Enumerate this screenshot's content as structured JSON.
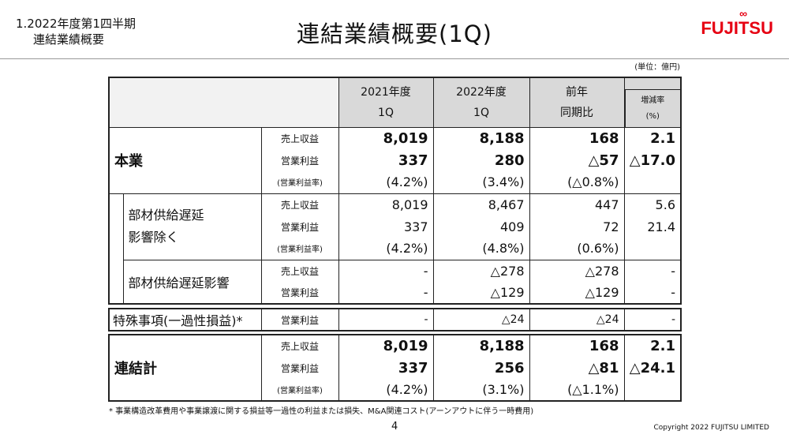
{
  "section": {
    "line1": "1.2022年度第1四半期",
    "line2": "連結業績概要"
  },
  "title": "連結業績概要(1Q)",
  "logo": "FUJITSU",
  "unit": "(単位：億円)",
  "headers": {
    "y2021": [
      "2021年度",
      "1Q"
    ],
    "y2022": [
      "2022年度",
      "1Q"
    ],
    "diff": [
      "前年",
      "同期比"
    ],
    "rate": [
      "増減率",
      "(%)"
    ]
  },
  "items": {
    "rev": "売上収益",
    "op": "営業利益",
    "margin": "(営業利益率)"
  },
  "core": {
    "label": "本業",
    "rev": [
      "8,019",
      "8,188",
      "168",
      "2.1"
    ],
    "op": [
      "337",
      "280",
      "△57",
      "△17.0"
    ],
    "margin": [
      "(4.2%)",
      "(3.4%)",
      "(△0.8%)",
      ""
    ]
  },
  "excl": {
    "label1": "部材供給遅延",
    "label2": "影響除く",
    "rev": [
      "8,019",
      "8,467",
      "447",
      "5.6"
    ],
    "op": [
      "337",
      "409",
      "72",
      "21.4"
    ],
    "margin": [
      "(4.2%)",
      "(4.8%)",
      "(0.6%)",
      ""
    ]
  },
  "impact": {
    "label": "部材供給遅延影響",
    "rev": [
      "-",
      "△278",
      "△278",
      "-"
    ],
    "op": [
      "-",
      "△129",
      "△129",
      "-"
    ]
  },
  "special": {
    "label": "特殊事項(一過性損益)*",
    "item": "営業利益",
    "op": [
      "-",
      "△24",
      "△24",
      "-"
    ]
  },
  "total": {
    "label": "連結計",
    "rev": [
      "8,019",
      "8,188",
      "168",
      "2.1"
    ],
    "op": [
      "337",
      "256",
      "△81",
      "△24.1"
    ],
    "margin": [
      "(4.2%)",
      "(3.1%)",
      "(△1.1%)",
      ""
    ]
  },
  "footnote": "* 事業構造改革費用や事業譲渡に関する損益等一過性の利益または損失、M&A関連コスト(アーンアウトに伴う一時費用)",
  "page": "4",
  "copyright": "Copyright 2022 FUJITSU LIMITED",
  "colors": {
    "brand": "#e60012",
    "header": "#d9d9d9"
  }
}
